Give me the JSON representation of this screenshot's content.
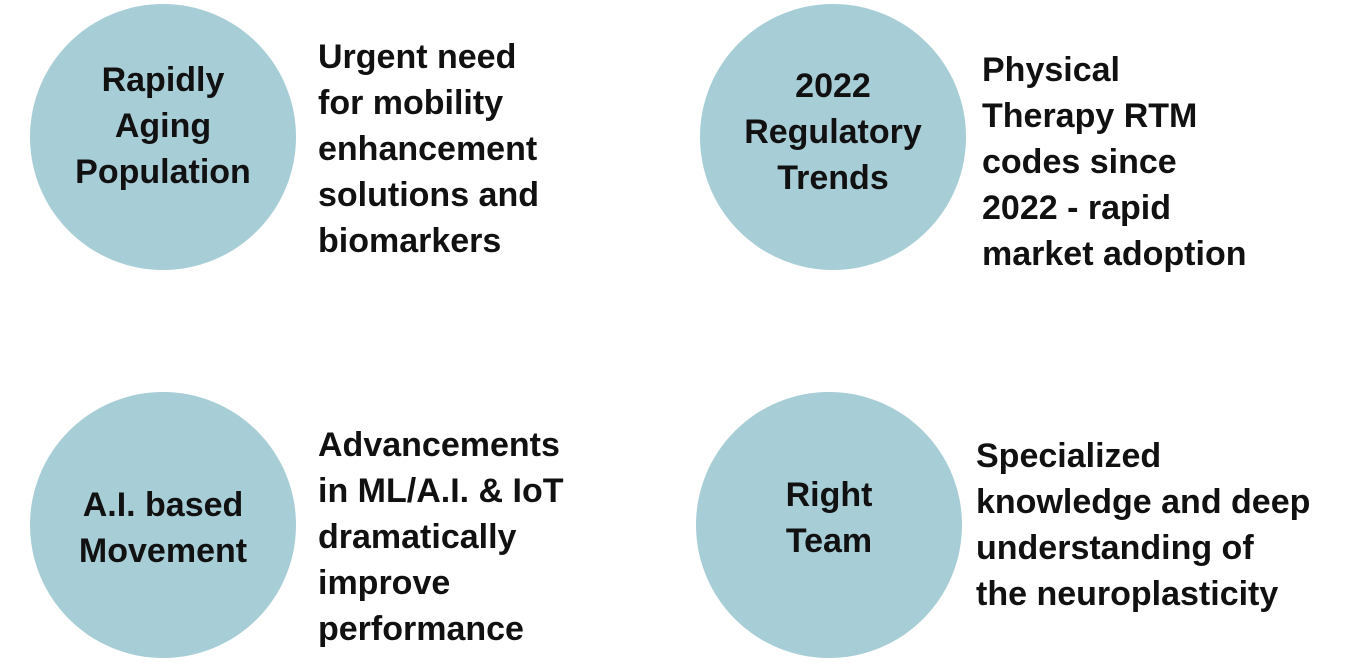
{
  "items": [
    {
      "circle": [
        "Rapidly",
        "Aging",
        "Population"
      ],
      "description": [
        "Urgent need",
        "for mobility",
        "enhancement",
        "solutions and",
        "biomarkers"
      ]
    },
    {
      "circle": [
        "2022",
        "Regulatory",
        "Trends"
      ],
      "description": [
        "Physical",
        "Therapy RTM",
        "codes since",
        "2022 - rapid",
        "market adoption"
      ]
    },
    {
      "circle": [
        "A.I. based",
        "Movement"
      ],
      "description": [
        "Advancements",
        "in ML/A.I. & IoT",
        "dramatically",
        "improve",
        "performance"
      ]
    },
    {
      "circle": [
        "Right",
        "Team"
      ],
      "description": [
        "Specialized",
        "knowledge and deep",
        "understanding of",
        "the neuroplasticity"
      ]
    }
  ]
}
